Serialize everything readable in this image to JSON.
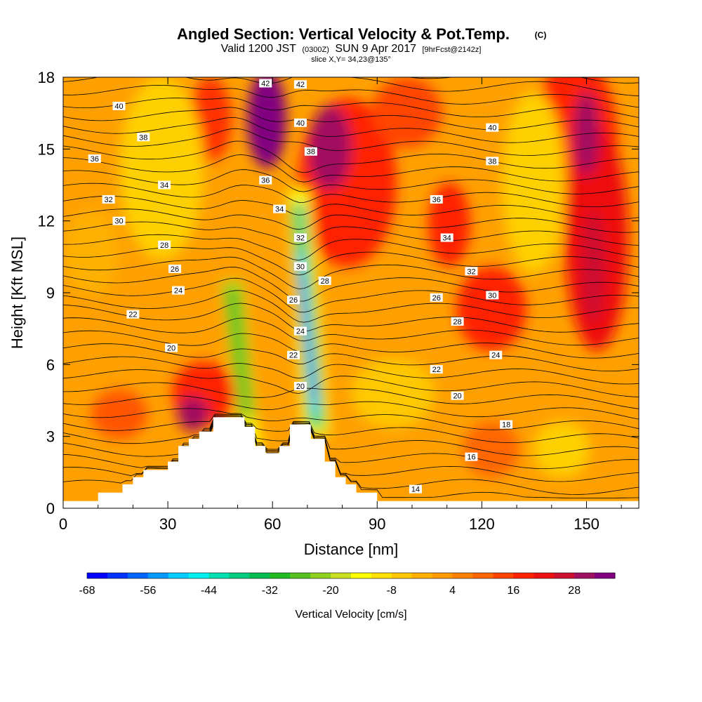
{
  "title": {
    "main": "Angled Section: Vertical Velocity & Pot.Temp.",
    "main_suffix": "(C)",
    "valid_a": "Valid 1200 JST",
    "valid_b": "(0300Z)",
    "valid_c": "SUN 9 Apr 2017",
    "valid_d": "[9hrFcst@2142z]",
    "slice": "slice X,Y= 34,23@135°"
  },
  "chart_data": {
    "type": "heatmap",
    "title": "Angled Section: Vertical Velocity & Pot.Temp.",
    "xlabel": "Distance [nm]",
    "ylabel": "Height [Kft MSL]",
    "xlim": [
      0,
      165
    ],
    "ylim": [
      0,
      18
    ],
    "x_ticks": [
      0,
      30,
      60,
      90,
      120,
      150
    ],
    "y_ticks": [
      0,
      3,
      6,
      9,
      12,
      15,
      18
    ],
    "colorbar": {
      "label": "Vertical Velocity [cm/s]",
      "min": -68,
      "max": 36,
      "step": 4,
      "tick_labels": [
        -68,
        -56,
        -44,
        -32,
        -20,
        -8,
        4,
        16,
        28
      ],
      "colors": [
        "#0000ff",
        "#0033ff",
        "#0066ff",
        "#0099ff",
        "#00ccff",
        "#00f0f0",
        "#00e0b0",
        "#00cc80",
        "#00bb50",
        "#22bb22",
        "#55c020",
        "#90d020",
        "#c8e020",
        "#ffff00",
        "#ffe000",
        "#ffc800",
        "#ffb000",
        "#ff9900",
        "#ff8000",
        "#ff6600",
        "#ff4400",
        "#ff2200",
        "#ee1111",
        "#cc1030",
        "#a01060",
        "#800080"
      ]
    },
    "terrain": [
      [
        0,
        0.3
      ],
      [
        10,
        0.3
      ],
      [
        10,
        0.65
      ],
      [
        17,
        0.65
      ],
      [
        17,
        1.0
      ],
      [
        20,
        1.0
      ],
      [
        20,
        1.3
      ],
      [
        23,
        1.3
      ],
      [
        23,
        1.6
      ],
      [
        30,
        1.6
      ],
      [
        30,
        1.95
      ],
      [
        33,
        1.95
      ],
      [
        33,
        2.6
      ],
      [
        36,
        2.6
      ],
      [
        36,
        2.9
      ],
      [
        39,
        2.9
      ],
      [
        39,
        3.2
      ],
      [
        43,
        3.2
      ],
      [
        43,
        3.8
      ],
      [
        52,
        3.8
      ],
      [
        52,
        3.4
      ],
      [
        55,
        3.4
      ],
      [
        55,
        2.6
      ],
      [
        58,
        2.6
      ],
      [
        58,
        2.3
      ],
      [
        62,
        2.3
      ],
      [
        62,
        2.6
      ],
      [
        65,
        2.6
      ],
      [
        65,
        3.5
      ],
      [
        71,
        3.5
      ],
      [
        71,
        2.9
      ],
      [
        75,
        2.9
      ],
      [
        75,
        1.95
      ],
      [
        78,
        1.95
      ],
      [
        78,
        1.3
      ],
      [
        81,
        1.3
      ],
      [
        81,
        1.0
      ],
      [
        84,
        1.0
      ],
      [
        84,
        0.65
      ],
      [
        90,
        0.65
      ],
      [
        90,
        0.3
      ],
      [
        165,
        0.3
      ]
    ],
    "theta_labels": [
      {
        "text": "42",
        "x": 58,
        "y": 17.75
      },
      {
        "text": "42",
        "x": 68,
        "y": 17.7
      },
      {
        "text": "40",
        "x": 16,
        "y": 16.8
      },
      {
        "text": "40",
        "x": 68,
        "y": 16.1
      },
      {
        "text": "40",
        "x": 123,
        "y": 15.9
      },
      {
        "text": "38",
        "x": 23,
        "y": 15.5
      },
      {
        "text": "38",
        "x": 71,
        "y": 14.9
      },
      {
        "text": "38",
        "x": 123,
        "y": 14.5
      },
      {
        "text": "36",
        "x": 9,
        "y": 14.6
      },
      {
        "text": "36",
        "x": 58,
        "y": 13.7
      },
      {
        "text": "36",
        "x": 107,
        "y": 12.9
      },
      {
        "text": "34",
        "x": 29,
        "y": 13.5
      },
      {
        "text": "34",
        "x": 62,
        "y": 12.5
      },
      {
        "text": "34",
        "x": 110,
        "y": 11.3
      },
      {
        "text": "32",
        "x": 13,
        "y": 12.9
      },
      {
        "text": "32",
        "x": 68,
        "y": 11.3
      },
      {
        "text": "32",
        "x": 117,
        "y": 9.9
      },
      {
        "text": "30",
        "x": 16,
        "y": 12.0
      },
      {
        "text": "30",
        "x": 68,
        "y": 10.1
      },
      {
        "text": "30",
        "x": 123,
        "y": 8.9
      },
      {
        "text": "28",
        "x": 29,
        "y": 11.0
      },
      {
        "text": "28",
        "x": 75,
        "y": 9.5
      },
      {
        "text": "28",
        "x": 113,
        "y": 7.8
      },
      {
        "text": "26",
        "x": 32,
        "y": 10.0
      },
      {
        "text": "26",
        "x": 66,
        "y": 8.7
      },
      {
        "text": "26",
        "x": 107,
        "y": 8.8
      },
      {
        "text": "24",
        "x": 33,
        "y": 9.1
      },
      {
        "text": "24",
        "x": 68,
        "y": 7.4
      },
      {
        "text": "24",
        "x": 124,
        "y": 6.4
      },
      {
        "text": "22",
        "x": 20,
        "y": 8.1
      },
      {
        "text": "22",
        "x": 66,
        "y": 6.4
      },
      {
        "text": "22",
        "x": 107,
        "y": 5.8
      },
      {
        "text": "20",
        "x": 31,
        "y": 6.7
      },
      {
        "text": "20",
        "x": 68,
        "y": 5.1
      },
      {
        "text": "20",
        "x": 113,
        "y": 4.7
      },
      {
        "text": "18",
        "x": 127,
        "y": 3.5
      },
      {
        "text": "16",
        "x": 117,
        "y": 2.15
      },
      {
        "text": "14",
        "x": 101,
        "y": 0.8
      }
    ]
  }
}
